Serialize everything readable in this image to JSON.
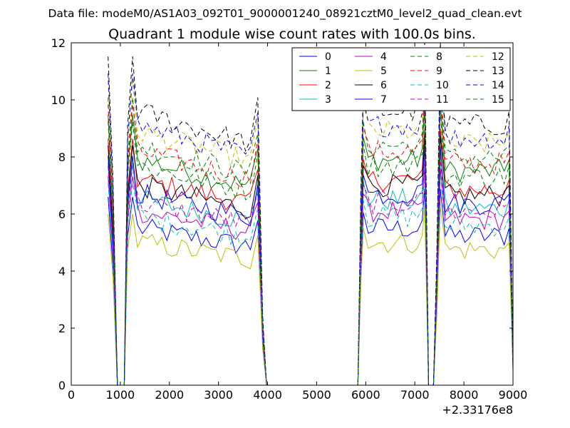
{
  "figure": {
    "suptitle": "Data file: modeM0/AS1A03_092T01_9000001240_08921cztM0_level2_quad_clean.evt"
  },
  "chart_data": {
    "type": "line",
    "title": "Quadrant 1 module wise count rates with 100.0s bins.",
    "xlabel": "",
    "ylabel": "",
    "offset_label": "+2.33176e8",
    "xlim": [
      0,
      9000
    ],
    "ylim": [
      0,
      12
    ],
    "xticks": [
      0,
      1000,
      2000,
      3000,
      4000,
      5000,
      6000,
      7000,
      8000,
      9000
    ],
    "yticks": [
      0,
      2,
      4,
      6,
      8,
      10,
      12
    ],
    "legend_placement": "top-right",
    "legend_columns": 4,
    "series": [
      {
        "name": "0",
        "color": "#0000ff",
        "dash": "solid",
        "value": 5.5
      },
      {
        "name": "1",
        "color": "#008000",
        "dash": "solid",
        "value": 7.9
      },
      {
        "name": "2",
        "color": "#ff0000",
        "dash": "solid",
        "value": 7.2
      },
      {
        "name": "3",
        "color": "#00bfbf",
        "dash": "solid",
        "value": 6.5
      },
      {
        "name": "4",
        "color": "#bf00bf",
        "dash": "solid",
        "value": 6.1
      },
      {
        "name": "5",
        "color": "#bfbf00",
        "dash": "solid",
        "value": 5.0
      },
      {
        "name": "6",
        "color": "#000000",
        "dash": "solid",
        "value": 7.0
      },
      {
        "name": "7",
        "color": "#0000ff",
        "dash": "solid",
        "value": 6.7
      },
      {
        "name": "8",
        "color": "#008000",
        "dash": "dashed",
        "value": 8.4
      },
      {
        "name": "9",
        "color": "#ff0000",
        "dash": "dashed",
        "value": 8.2
      },
      {
        "name": "10",
        "color": "#00bfbf",
        "dash": "dashed",
        "value": 5.9
      },
      {
        "name": "11",
        "color": "#bf00bf",
        "dash": "dashed",
        "value": 6.4
      },
      {
        "name": "12",
        "color": "#bfbf00",
        "dash": "dashed",
        "value": 8.9
      },
      {
        "name": "13",
        "color": "#000000",
        "dash": "dashed",
        "value": 9.6
      },
      {
        "name": "14",
        "color": "#0000ff",
        "dash": "dashed",
        "value": 9.1
      },
      {
        "name": "15",
        "color": "#008000",
        "dash": "dashed",
        "value": 7.7
      }
    ],
    "time_segments": [
      {
        "x_start": 750,
        "x_end": 3850
      },
      {
        "x_start": 5850,
        "x_end": 7250
      },
      {
        "x_start": 7500,
        "x_end": 9000
      }
    ],
    "gaps_zero": [
      {
        "x_start": 940,
        "x_end": 1080
      },
      {
        "x_start": 3980,
        "x_end": 5840
      },
      {
        "x_start": 7280,
        "x_end": 7380
      }
    ]
  }
}
